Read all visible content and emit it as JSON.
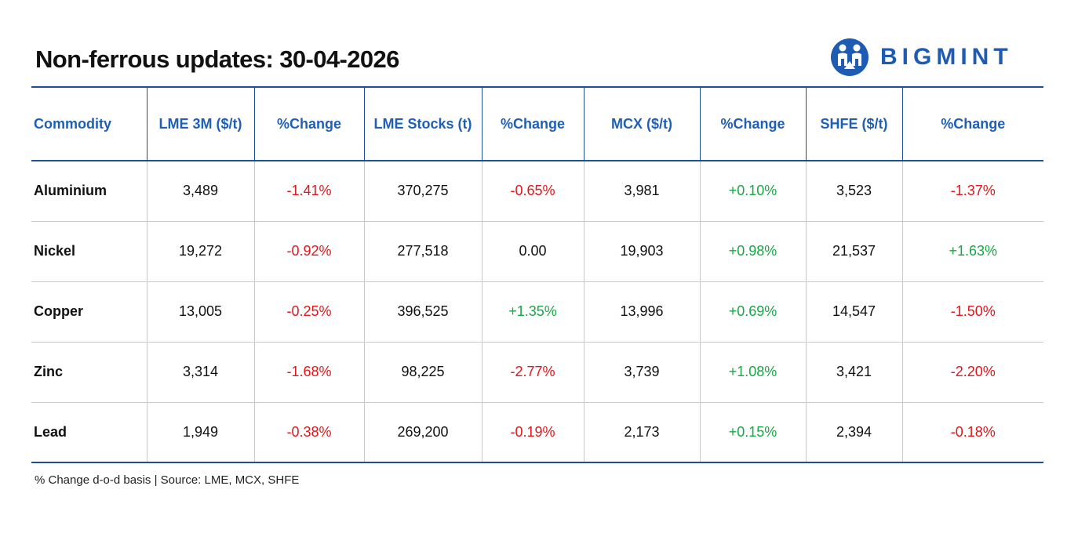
{
  "title": "Non-ferrous updates: 30-04-2026",
  "brand": {
    "name": "BIGMINT",
    "color": "#1e5bb3"
  },
  "colors": {
    "header_text": "#1f5fb6",
    "rule": "#1d4f98",
    "negative": "#e0161b",
    "positive": "#17a844"
  },
  "table": {
    "headers": [
      "Commodity",
      "LME 3M ($/t)",
      "%Change",
      "LME Stocks (t)",
      "%Change",
      "MCX ($/t)",
      "%Change",
      "SHFE ($/t)",
      "%Change"
    ],
    "rows": [
      [
        "Aluminium",
        "3,489",
        "-1.41%",
        "370,275",
        "-0.65%",
        "3,981",
        "+0.10%",
        "3,523",
        "-1.37%"
      ],
      [
        "Nickel",
        "19,272",
        "-0.92%",
        "277,518",
        "0.00",
        "19,903",
        "+0.98%",
        "21,537",
        "+1.63%"
      ],
      [
        "Copper",
        "13,005",
        "-0.25%",
        "396,525",
        "+1.35%",
        "13,996",
        "+0.69%",
        "14,547",
        "-1.50%"
      ],
      [
        "Zinc",
        "3,314",
        "-1.68%",
        "98,225",
        "-2.77%",
        "3,739",
        "+1.08%",
        "3,421",
        "-2.20%"
      ],
      [
        "Lead",
        "1,949",
        "-0.38%",
        "269,200",
        "-0.19%",
        "2,173",
        "+0.15%",
        "2,394",
        "-0.18%"
      ]
    ]
  },
  "footnote": "% Change d-o-d basis | Source: LME, MCX, SHFE"
}
